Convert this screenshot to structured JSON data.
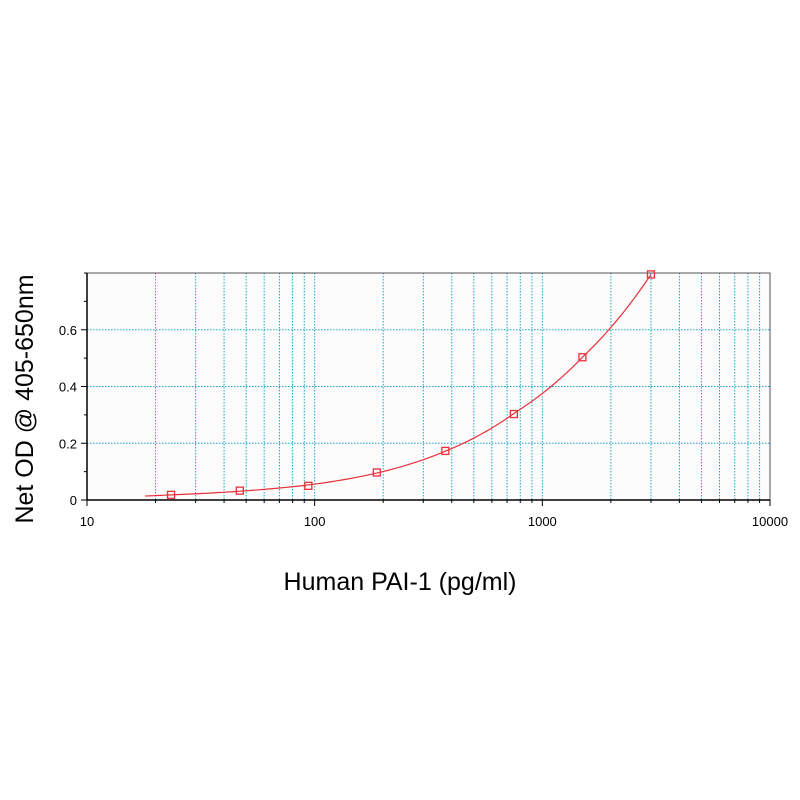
{
  "chart_data": {
    "type": "scatter",
    "title": "",
    "xlabel": "Human PAI-1 (pg/ml)",
    "ylabel": "Net OD @ 405-650nm",
    "x_scale": "log",
    "xlim": [
      10,
      10000
    ],
    "ylim": [
      0,
      0.8
    ],
    "x_ticks": [
      10,
      100,
      1000,
      10000
    ],
    "x_tick_labels": [
      "10",
      "100",
      "1000",
      "10000"
    ],
    "y_ticks": [
      0,
      0.2,
      0.4,
      0.6
    ],
    "y_tick_labels": [
      "0",
      "0.2",
      "0.4",
      "0.6"
    ],
    "grid": true,
    "series": [
      {
        "points": {
          "x": [
            23.4,
            46.9,
            93.8,
            187.5,
            375,
            750,
            1500,
            3000
          ],
          "y": [
            0.018,
            0.033,
            0.05,
            0.097,
            0.173,
            0.303,
            0.503,
            0.795
          ]
        },
        "fit_curve": {
          "x": [
            18,
            23.4,
            46.9,
            93.8,
            187.5,
            375,
            750,
            1500,
            3000
          ],
          "y": [
            0.014,
            0.018,
            0.031,
            0.053,
            0.095,
            0.172,
            0.305,
            0.503,
            0.795
          ]
        },
        "marker": "open-square"
      }
    ],
    "colors": {
      "series": "#e8303a",
      "grid": "#1aa6c9",
      "plot_background": "#fcfcfc",
      "axis": "#000000"
    }
  }
}
